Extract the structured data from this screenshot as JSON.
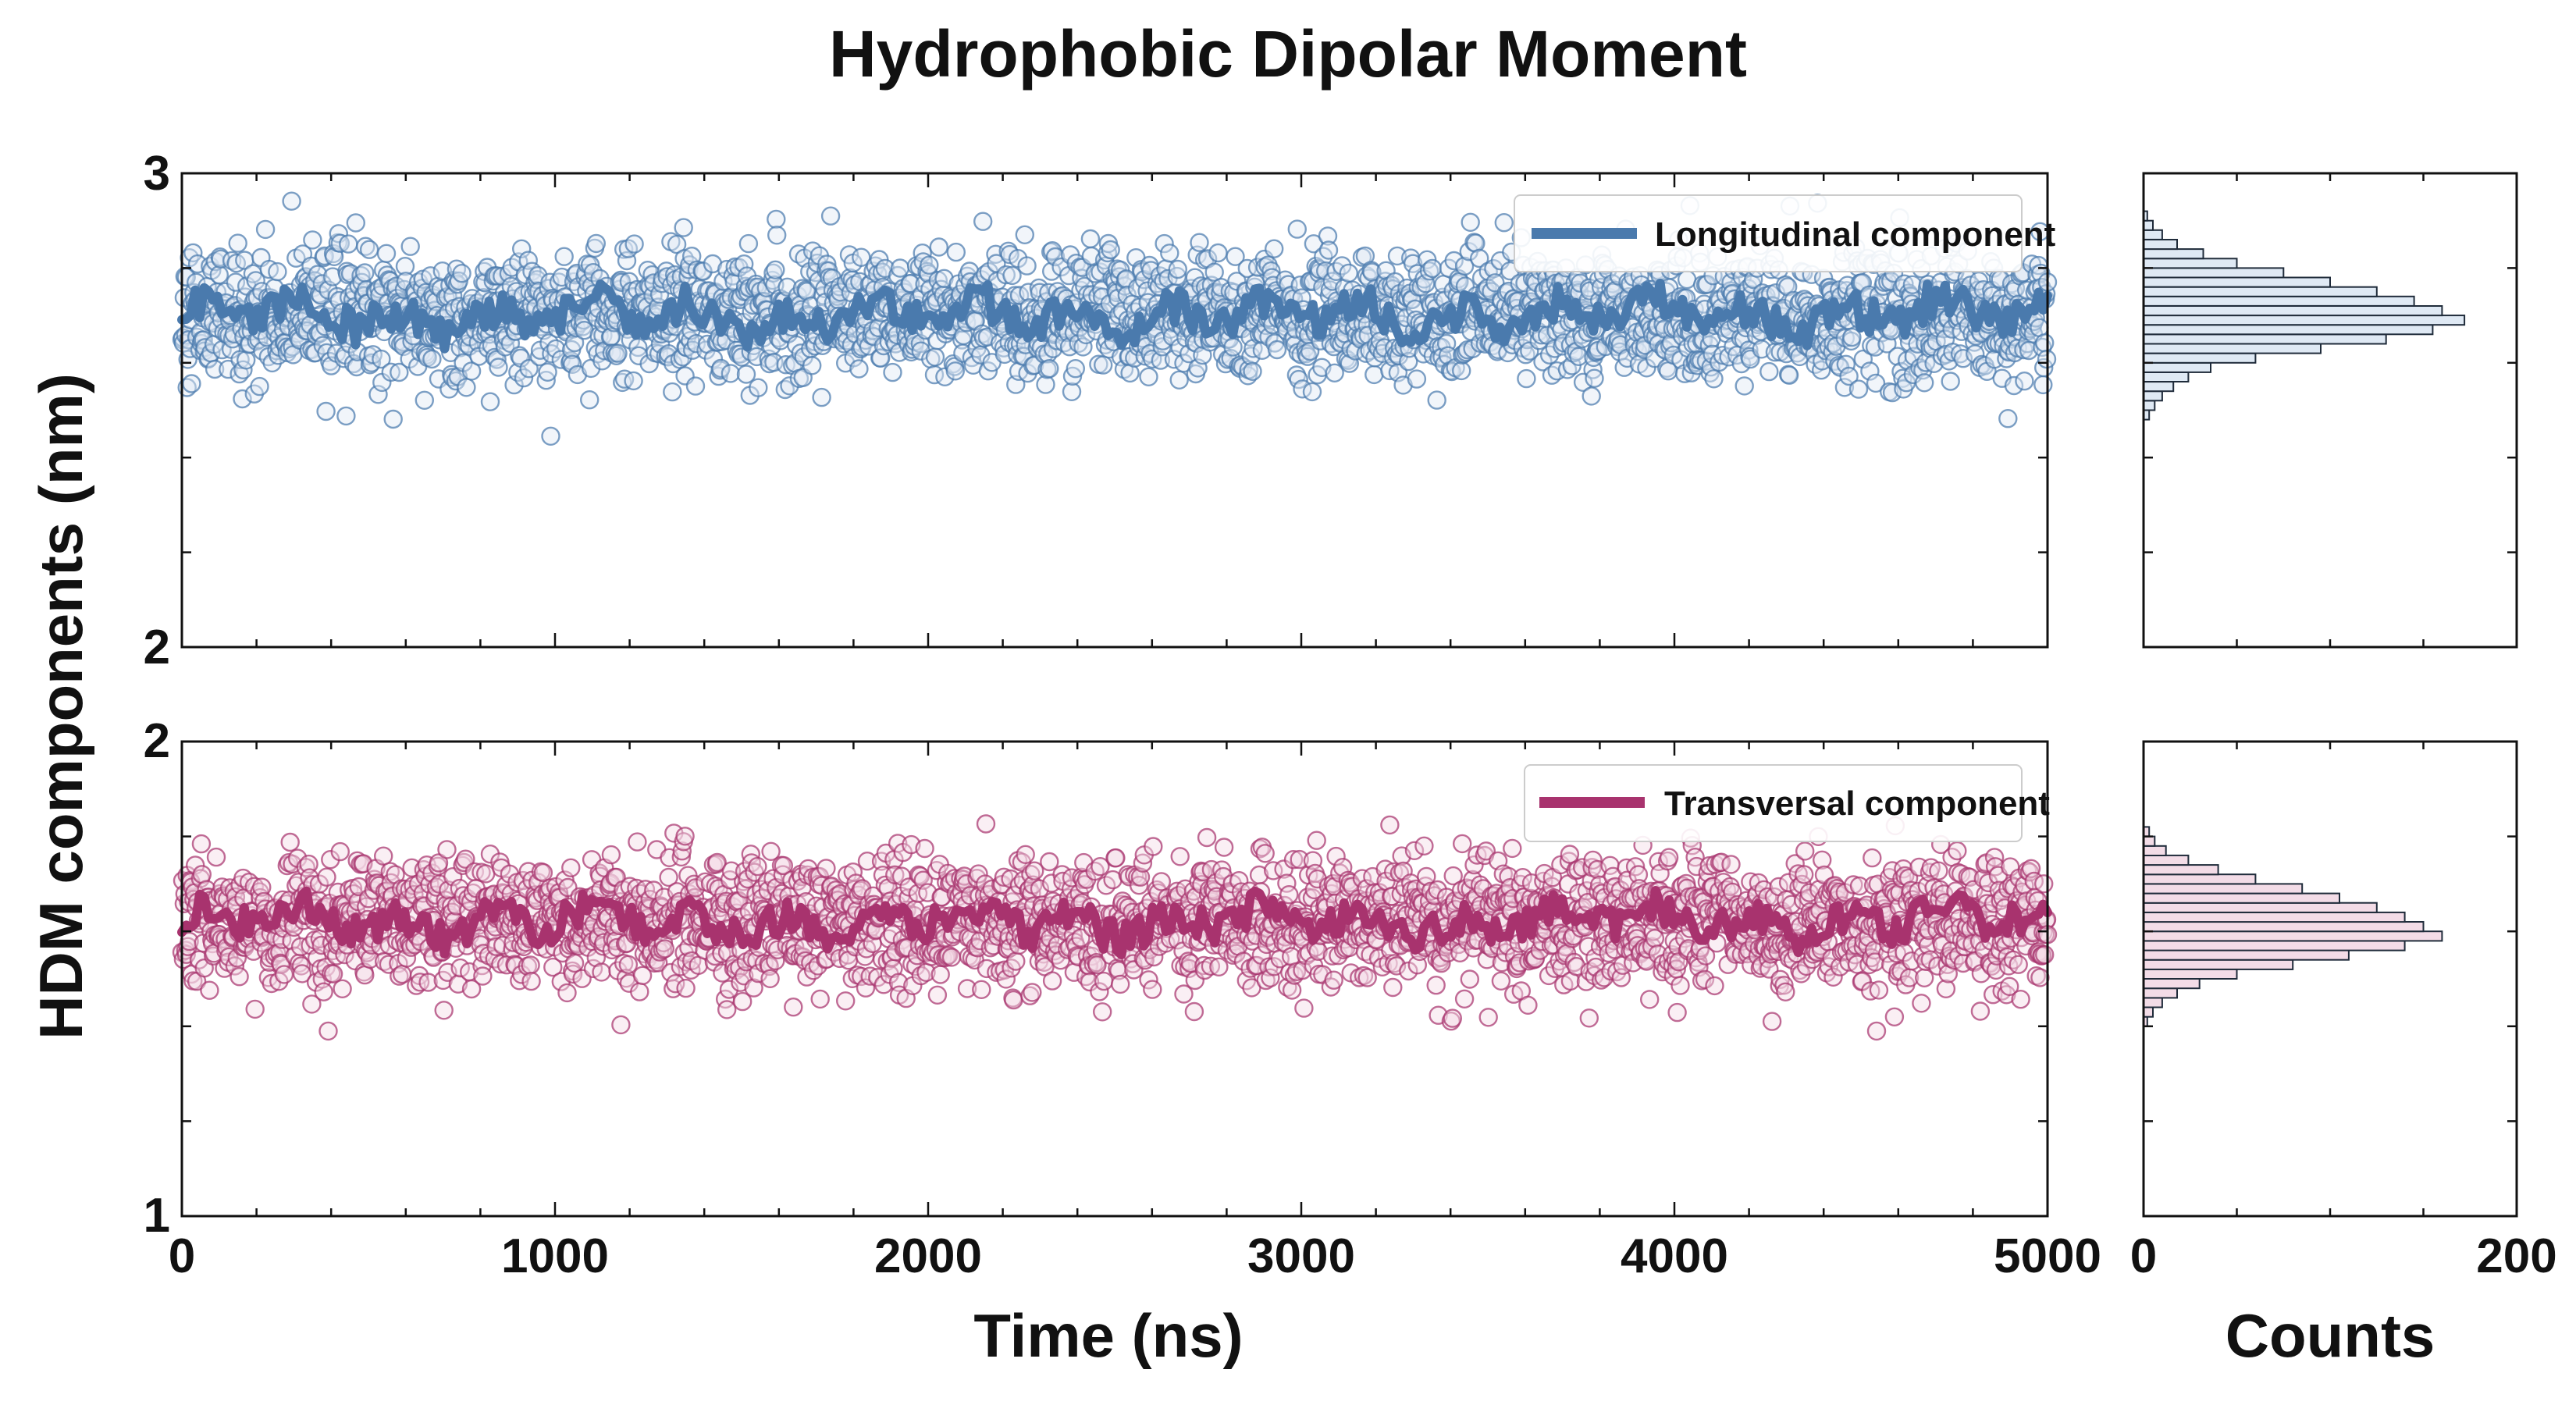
{
  "chart_data": {
    "type": "scatter",
    "title": "Hydrophobic Dipolar Moment",
    "ylabel": "HDM components (nm)",
    "xlabel": "Time (ns)",
    "hist_xlabel": "Counts",
    "xlim": [
      0,
      5000
    ],
    "x_ticks": [
      "0",
      "1000",
      "2000",
      "3000",
      "4000",
      "5000"
    ],
    "hist_xlim": [
      0,
      200
    ],
    "hist_x_ticks": [
      "0",
      "200"
    ],
    "panels": [
      {
        "name": "Longitudinal component",
        "color": "#4a7aad",
        "ylim": [
          2,
          3
        ],
        "y_ticks": [
          "2",
          "3"
        ],
        "scatter": {
          "x_range": [
            0,
            5000
          ],
          "n_points": 2500,
          "mean": 2.7,
          "std": 0.07,
          "min": 2.4,
          "max": 2.98
        },
        "running_average": {
          "mean": 2.7,
          "band": [
            2.63,
            2.76
          ]
        },
        "histogram": {
          "bin_centers": [
            2.49,
            2.51,
            2.53,
            2.55,
            2.57,
            2.59,
            2.61,
            2.63,
            2.65,
            2.67,
            2.69,
            2.71,
            2.73,
            2.75,
            2.77,
            2.79,
            2.81,
            2.83,
            2.85,
            2.87,
            2.89,
            2.91
          ],
          "counts": [
            3,
            6,
            10,
            16,
            24,
            36,
            60,
            95,
            130,
            155,
            172,
            160,
            145,
            125,
            100,
            75,
            50,
            32,
            18,
            10,
            5,
            2
          ]
        }
      },
      {
        "name": "Transversal component",
        "color": "#a8336e",
        "ylim": [
          1,
          2
        ],
        "y_ticks": [
          "1",
          "2"
        ],
        "scatter": {
          "x_range": [
            0,
            5000
          ],
          "n_points": 2500,
          "mean": 1.62,
          "std": 0.07,
          "min": 1.39,
          "max": 1.84
        },
        "running_average": {
          "mean": 1.62,
          "band": [
            1.56,
            1.68
          ]
        },
        "histogram": {
          "bin_centers": [
            1.41,
            1.43,
            1.45,
            1.47,
            1.49,
            1.51,
            1.53,
            1.55,
            1.57,
            1.59,
            1.61,
            1.63,
            1.65,
            1.67,
            1.69,
            1.71,
            1.73,
            1.75,
            1.77,
            1.79,
            1.81
          ],
          "counts": [
            2,
            5,
            10,
            18,
            30,
            50,
            80,
            110,
            140,
            160,
            150,
            140,
            125,
            105,
            85,
            60,
            40,
            24,
            12,
            6,
            3
          ]
        }
      }
    ]
  }
}
